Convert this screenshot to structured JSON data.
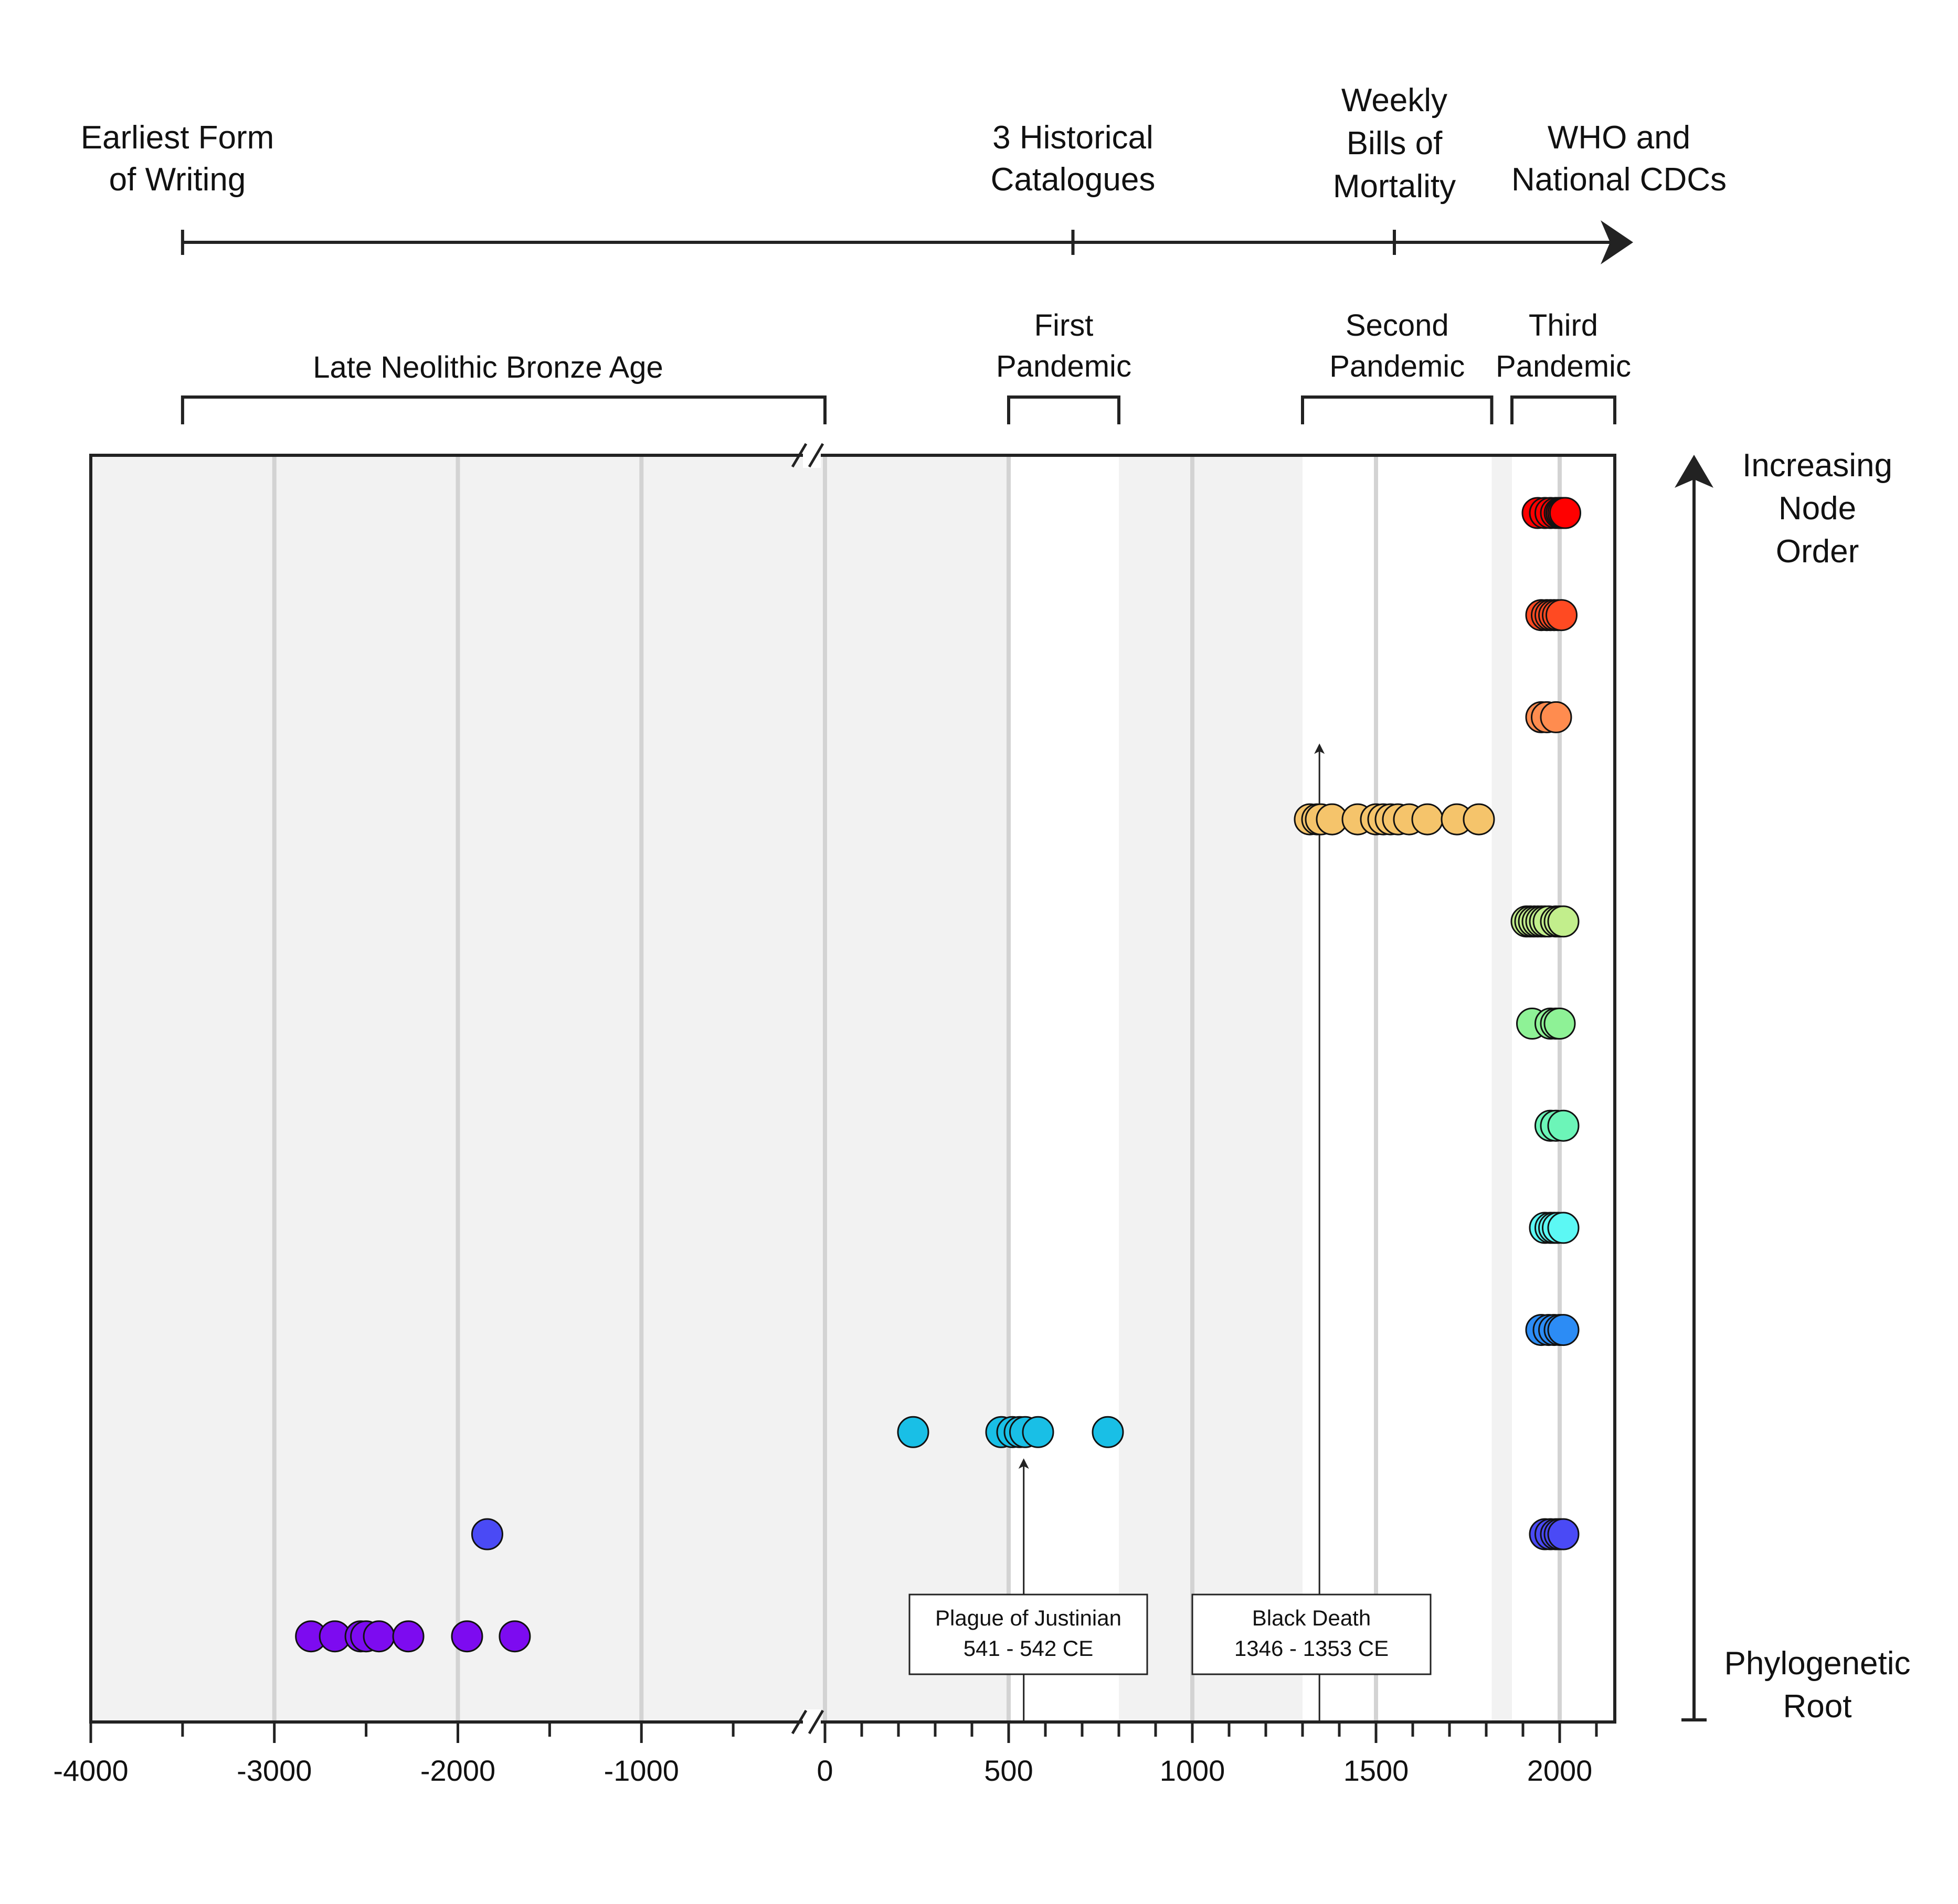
{
  "timeline": {
    "events": [
      {
        "x": -3500,
        "lines": [
          "Earliest Form",
          "of Writing"
        ]
      },
      {
        "x": 675,
        "lines": [
          "3 Historical",
          "Catalogues"
        ]
      },
      {
        "x": 1550,
        "lines": [
          "Weekly",
          "Bills of",
          "Mortality"
        ]
      },
      {
        "x": 2148,
        "lines": [
          "WHO and",
          "National CDCs"
        ]
      }
    ]
  },
  "periods": [
    {
      "start": -3500,
      "end": 0,
      "lines": [
        "Late Neolithic Bronze Age"
      ]
    },
    {
      "start": 500,
      "end": 800,
      "lines": [
        "First",
        "Pandemic"
      ]
    },
    {
      "start": 1300,
      "end": 1815,
      "lines": [
        "Second",
        "Pandemic"
      ]
    },
    {
      "start": 1870,
      "end": 2150,
      "lines": [
        "Third",
        "Pandemic"
      ]
    }
  ],
  "y_axis": {
    "top_label": [
      "Increasing",
      "Node",
      "Order"
    ],
    "bottom_label": [
      "Phylogenetic",
      "Root"
    ]
  },
  "annotations": [
    {
      "x": 541,
      "row": 10,
      "label_lines": [
        "Plague of Justinian",
        "541 - 542 CE"
      ]
    },
    {
      "x": 1346,
      "row": 3,
      "label_lines": [
        "Black Death",
        "1346 - 1353 CE"
      ]
    }
  ],
  "chart_data": {
    "type": "scatter",
    "x_range": [
      -4000,
      2150
    ],
    "axis_break": 0,
    "x_ticks": [
      -4000,
      -3000,
      -2000,
      -1000,
      0,
      500,
      1000,
      1500,
      2000
    ],
    "x_ticks_labels": [
      "-4000",
      "-3000",
      "-2000",
      "-1000",
      "0",
      "500",
      "1000",
      "1500",
      "2000"
    ],
    "gridlines": [
      -3000,
      -2000,
      -1000,
      0,
      500,
      1000,
      1500,
      2000
    ],
    "shaded_bands": [
      [
        800,
        1300
      ],
      [
        1815,
        1870
      ]
    ],
    "series": [
      {
        "row": 1,
        "color": "#ff0000",
        "x": [
          1940,
          1960,
          1975,
          1990,
          2000,
          2005,
          2010,
          2015
        ]
      },
      {
        "row": 2,
        "color": "#ff4a22",
        "x": [
          1950,
          1965,
          1975,
          1985,
          1995,
          2005
        ]
      },
      {
        "row": 3,
        "color": "#ff8c4f",
        "x": [
          1950,
          1965,
          1990
        ]
      },
      {
        "row": 4,
        "color": "#f5c46b",
        "x": [
          1320,
          1340,
          1350,
          1380,
          1450,
          1500,
          1520,
          1540,
          1560,
          1590,
          1640,
          1720,
          1780
        ]
      },
      {
        "row": 5,
        "color": "#c2ee8c",
        "x": [
          1910,
          1920,
          1930,
          1940,
          1950,
          1960,
          1970,
          1990,
          2000,
          2010
        ]
      },
      {
        "row": 6,
        "color": "#8ef296",
        "x": [
          1925,
          1975,
          1990,
          2000
        ]
      },
      {
        "row": 7,
        "color": "#6cf5b8",
        "x": [
          1975,
          1990,
          2010
        ]
      },
      {
        "row": 8,
        "color": "#5cf8f4",
        "x": [
          1960,
          1975,
          1985,
          1995,
          2010
        ]
      },
      {
        "row": 9,
        "color": "#2c8cf5",
        "x": [
          1950,
          1970,
          1985,
          2000,
          2010
        ]
      },
      {
        "row": 10,
        "color": "#19bfe6",
        "x": [
          240,
          480,
          510,
          530,
          545,
          580,
          770
        ]
      },
      {
        "row": 11,
        "color": "#4a4af5",
        "x": [
          -1840,
          1960,
          1975,
          1990,
          2000,
          2010
        ]
      },
      {
        "row": 12,
        "color": "#7d0bf0",
        "x": [
          -2800,
          -2670,
          -2530,
          -2500,
          -2430,
          -2270,
          -1950,
          -1690
        ]
      }
    ]
  }
}
